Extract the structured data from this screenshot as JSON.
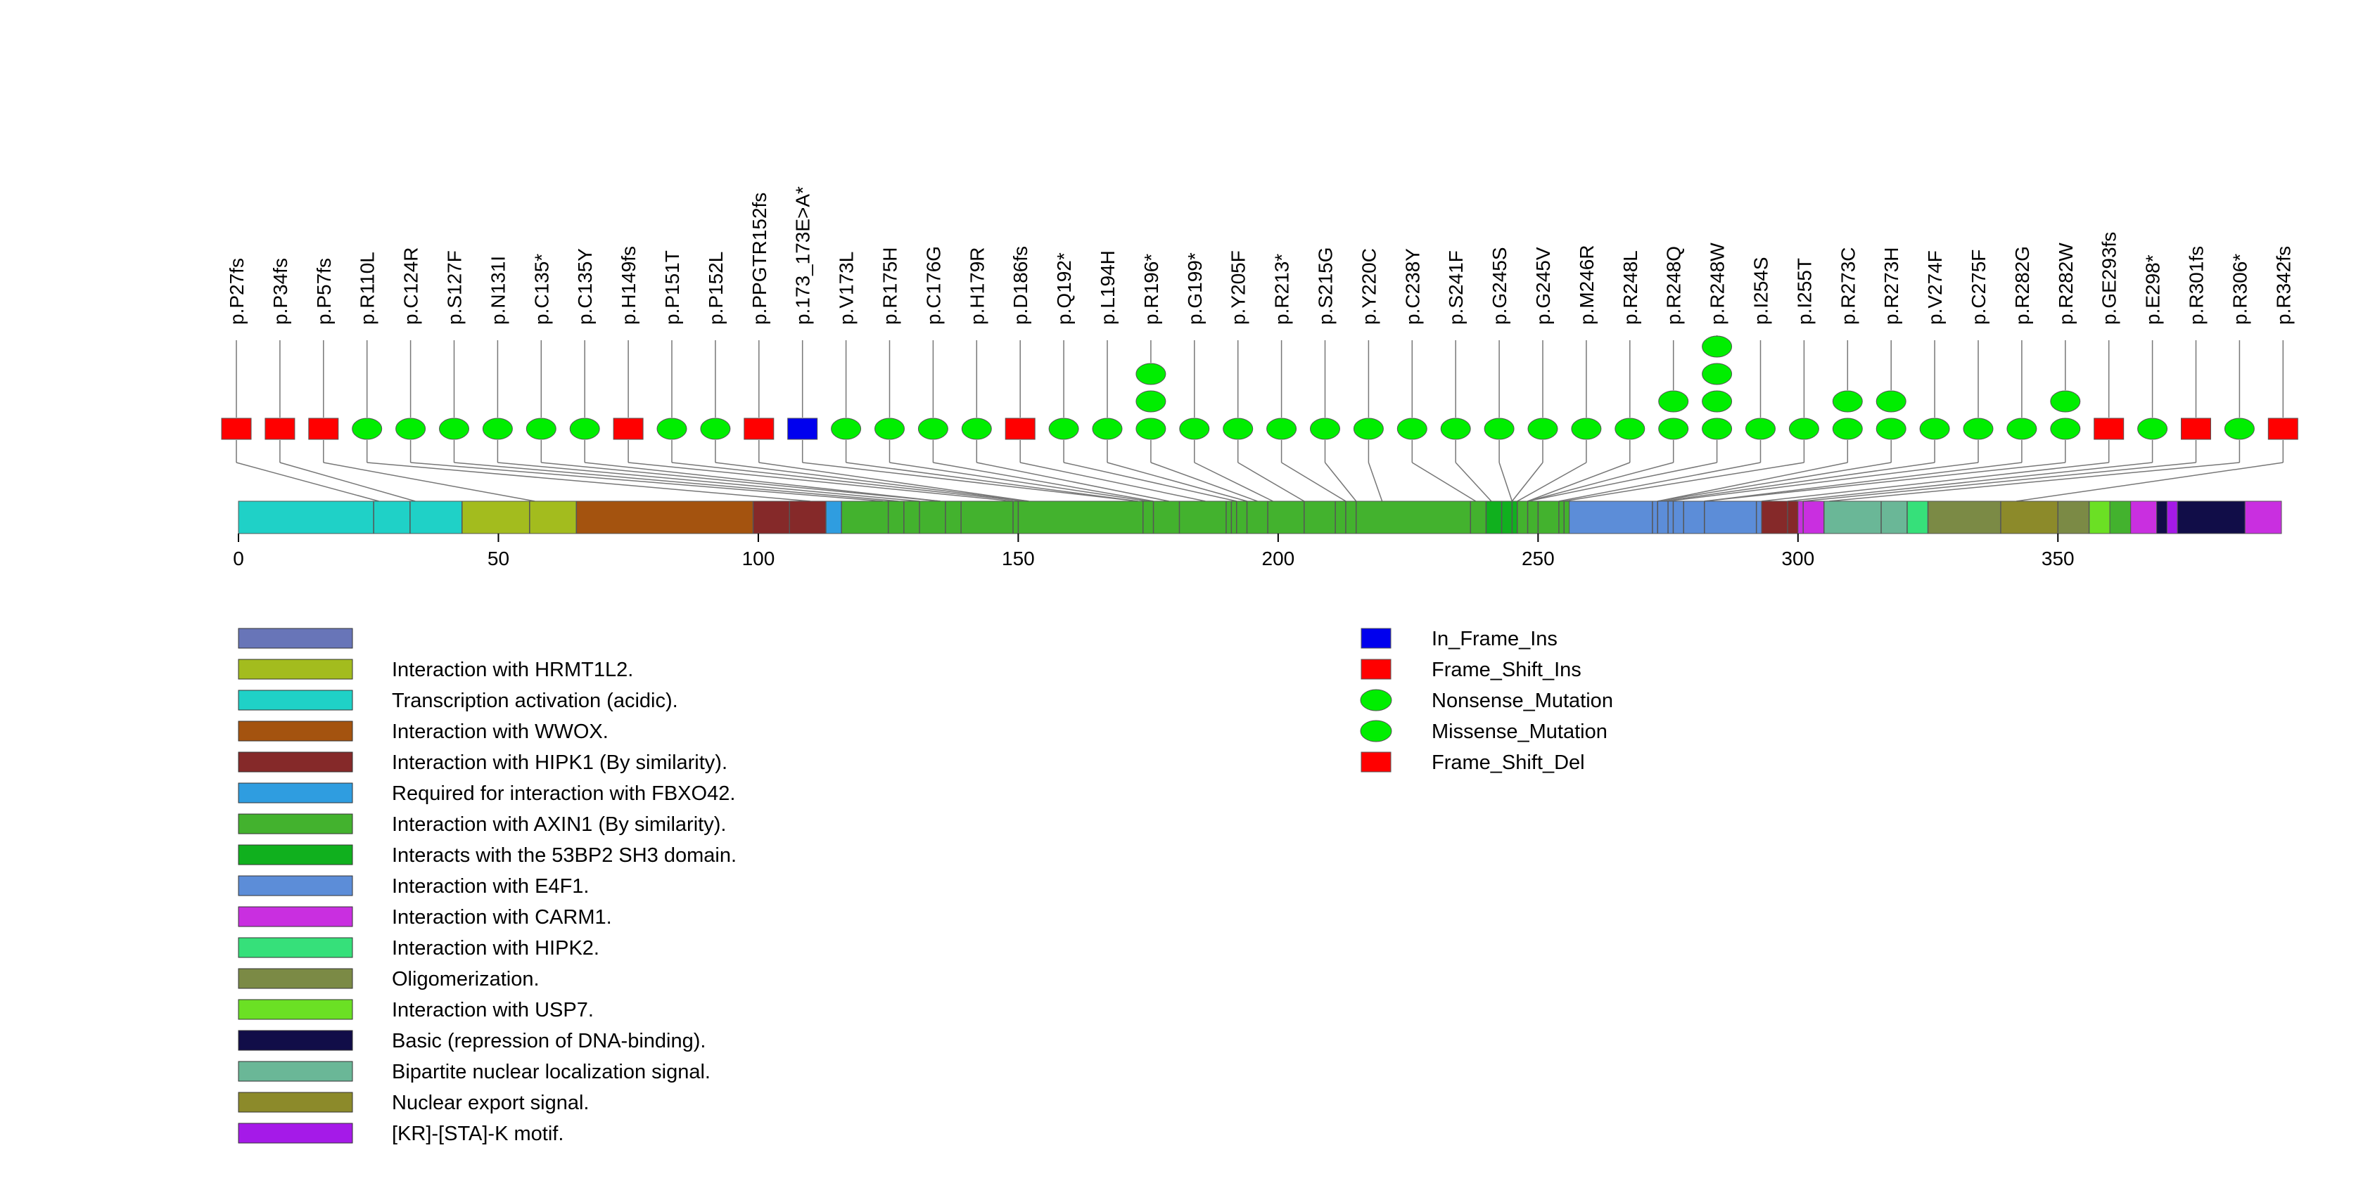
{
  "chart_data": {
    "type": "lollipop",
    "x_axis": {
      "min": 0,
      "max": 393,
      "ticks": [
        0,
        50,
        100,
        150,
        200,
        250,
        300,
        350
      ]
    },
    "mutation_types": {
      "In_Frame_Ins": {
        "color": "#0000ee",
        "shape": "rect"
      },
      "Frame_Shift_Ins": {
        "color": "#ff0000",
        "shape": "rect"
      },
      "Nonsense_Mutation": {
        "color": "#00ee00",
        "shape": "ellipse"
      },
      "Missense_Mutation": {
        "color": "#00ee00",
        "shape": "ellipse"
      },
      "Frame_Shift_Del": {
        "color": "#ff0000",
        "shape": "rect"
      }
    },
    "mutations": [
      {
        "label": "p.P27fs",
        "pos": 27,
        "type": "Frame_Shift_Del",
        "count": 1
      },
      {
        "label": "p.P34fs",
        "pos": 34,
        "type": "Frame_Shift_Del",
        "count": 1
      },
      {
        "label": "p.P57fs",
        "pos": 57,
        "type": "Frame_Shift_Del",
        "count": 1
      },
      {
        "label": "p.R110L",
        "pos": 110,
        "type": "Missense_Mutation",
        "count": 1
      },
      {
        "label": "p.C124R",
        "pos": 124,
        "type": "Missense_Mutation",
        "count": 1
      },
      {
        "label": "p.S127F",
        "pos": 127,
        "type": "Missense_Mutation",
        "count": 1
      },
      {
        "label": "p.N131I",
        "pos": 131,
        "type": "Missense_Mutation",
        "count": 1
      },
      {
        "label": "p.C135*",
        "pos": 135,
        "type": "Nonsense_Mutation",
        "count": 1
      },
      {
        "label": "p.C135Y",
        "pos": 135,
        "type": "Missense_Mutation",
        "count": 1
      },
      {
        "label": "p.H149fs",
        "pos": 149,
        "type": "Frame_Shift_Del",
        "count": 1
      },
      {
        "label": "p.P151T",
        "pos": 151,
        "type": "Missense_Mutation",
        "count": 1
      },
      {
        "label": "p.P152L",
        "pos": 152,
        "type": "Missense_Mutation",
        "count": 1
      },
      {
        "label": "p.PPGTR152fs",
        "pos": 152,
        "type": "Frame_Shift_Del",
        "count": 1
      },
      {
        "label": "p.173_173E>A*",
        "pos": 173,
        "type": "In_Frame_Ins",
        "count": 1
      },
      {
        "label": "p.V173L",
        "pos": 173,
        "type": "Missense_Mutation",
        "count": 1
      },
      {
        "label": "p.R175H",
        "pos": 175,
        "type": "Missense_Mutation",
        "count": 1
      },
      {
        "label": "p.C176G",
        "pos": 176,
        "type": "Missense_Mutation",
        "count": 1
      },
      {
        "label": "p.H179R",
        "pos": 179,
        "type": "Missense_Mutation",
        "count": 1
      },
      {
        "label": "p.D186fs",
        "pos": 186,
        "type": "Frame_Shift_Del",
        "count": 1
      },
      {
        "label": "p.Q192*",
        "pos": 192,
        "type": "Nonsense_Mutation",
        "count": 1
      },
      {
        "label": "p.L194H",
        "pos": 194,
        "type": "Missense_Mutation",
        "count": 1
      },
      {
        "label": "p.R196*",
        "pos": 196,
        "type": "Nonsense_Mutation",
        "count": 3
      },
      {
        "label": "p.G199*",
        "pos": 199,
        "type": "Nonsense_Mutation",
        "count": 1
      },
      {
        "label": "p.Y205F",
        "pos": 205,
        "type": "Missense_Mutation",
        "count": 1
      },
      {
        "label": "p.R213*",
        "pos": 213,
        "type": "Nonsense_Mutation",
        "count": 1
      },
      {
        "label": "p.S215G",
        "pos": 215,
        "type": "Missense_Mutation",
        "count": 1
      },
      {
        "label": "p.Y220C",
        "pos": 220,
        "type": "Missense_Mutation",
        "count": 1
      },
      {
        "label": "p.C238Y",
        "pos": 238,
        "type": "Missense_Mutation",
        "count": 1
      },
      {
        "label": "p.S241F",
        "pos": 241,
        "type": "Missense_Mutation",
        "count": 1
      },
      {
        "label": "p.G245S",
        "pos": 245,
        "type": "Missense_Mutation",
        "count": 1
      },
      {
        "label": "p.G245V",
        "pos": 245,
        "type": "Missense_Mutation",
        "count": 1
      },
      {
        "label": "p.M246R",
        "pos": 246,
        "type": "Missense_Mutation",
        "count": 1
      },
      {
        "label": "p.R248L",
        "pos": 248,
        "type": "Missense_Mutation",
        "count": 1
      },
      {
        "label": "p.R248Q",
        "pos": 248,
        "type": "Missense_Mutation",
        "count": 2
      },
      {
        "label": "p.R248W",
        "pos": 248,
        "type": "Missense_Mutation",
        "count": 4
      },
      {
        "label": "p.I254S",
        "pos": 254,
        "type": "Missense_Mutation",
        "count": 1
      },
      {
        "label": "p.I255T",
        "pos": 255,
        "type": "Missense_Mutation",
        "count": 1
      },
      {
        "label": "p.R273C",
        "pos": 273,
        "type": "Missense_Mutation",
        "count": 2
      },
      {
        "label": "p.R273H",
        "pos": 273,
        "type": "Missense_Mutation",
        "count": 2
      },
      {
        "label": "p.V274F",
        "pos": 274,
        "type": "Missense_Mutation",
        "count": 1
      },
      {
        "label": "p.C275F",
        "pos": 275,
        "type": "Missense_Mutation",
        "count": 1
      },
      {
        "label": "p.R282G",
        "pos": 282,
        "type": "Missense_Mutation",
        "count": 1
      },
      {
        "label": "p.R282W",
        "pos": 282,
        "type": "Missense_Mutation",
        "count": 2
      },
      {
        "label": "p.GE293fs",
        "pos": 293,
        "type": "Frame_Shift_Del",
        "count": 1
      },
      {
        "label": "p.E298*",
        "pos": 298,
        "type": "Nonsense_Mutation",
        "count": 1
      },
      {
        "label": "p.R301fs",
        "pos": 301,
        "type": "Frame_Shift_Del",
        "count": 1
      },
      {
        "label": "p.R306*",
        "pos": 306,
        "type": "Nonsense_Mutation",
        "count": 1
      },
      {
        "label": "p.R342fs",
        "pos": 342,
        "type": "Frame_Shift_Ins",
        "count": 1
      }
    ],
    "domains": [
      {
        "start": 0,
        "end": 393,
        "color": "#43b22e"
      },
      {
        "start": 0,
        "end": 26,
        "color": "#1fd1c7"
      },
      {
        "start": 26,
        "end": 43,
        "color": "#1fd1c7"
      },
      {
        "start": 43,
        "end": 56,
        "color": "#a3bc1e"
      },
      {
        "start": 56,
        "end": 65,
        "color": "#a3bc1e"
      },
      {
        "start": 65,
        "end": 99,
        "color": "#a4530f"
      },
      {
        "start": 99,
        "end": 113,
        "color": "#852929"
      },
      {
        "start": 113,
        "end": 116,
        "color": "#2f9de0"
      },
      {
        "start": 116,
        "end": 250,
        "color": "#43b22e"
      },
      {
        "start": 240,
        "end": 246,
        "color": "#10b01e"
      },
      {
        "start": 256,
        "end": 293,
        "color": "#5c8dd8"
      },
      {
        "start": 293,
        "end": 300,
        "color": "#852929"
      },
      {
        "start": 300,
        "end": 305,
        "color": "#c92fe0"
      },
      {
        "start": 305,
        "end": 321,
        "color": "#6ab797"
      },
      {
        "start": 321,
        "end": 325,
        "color": "#36e07a"
      },
      {
        "start": 325,
        "end": 339,
        "color": "#7b8a45"
      },
      {
        "start": 339,
        "end": 350,
        "color": "#8c8a2a"
      },
      {
        "start": 350,
        "end": 356,
        "color": "#7b8a45"
      },
      {
        "start": 356,
        "end": 360,
        "color": "#6be024"
      },
      {
        "start": 360,
        "end": 364,
        "color": "#43b22e"
      },
      {
        "start": 364,
        "end": 369,
        "color": "#c92fe0"
      },
      {
        "start": 369,
        "end": 371,
        "color": "#110d48"
      },
      {
        "start": 371,
        "end": 373,
        "color": "#a51ae8"
      },
      {
        "start": 373,
        "end": 386,
        "color": "#110d48"
      },
      {
        "start": 386,
        "end": 393,
        "color": "#c92fe0"
      }
    ],
    "domain_ticks": [
      26,
      33,
      43,
      56,
      65,
      99,
      106,
      113,
      116,
      125,
      128,
      131,
      136,
      139,
      149,
      150,
      174,
      176,
      181,
      190,
      191,
      192,
      194,
      198,
      205,
      211,
      213,
      215,
      237,
      240,
      243,
      245,
      246,
      248,
      250,
      254,
      255,
      272,
      273,
      275,
      276,
      278,
      282,
      292,
      298,
      301,
      305,
      316,
      321,
      325,
      339,
      350,
      356
    ],
    "legend_domains": [
      {
        "label": "",
        "color": "#6875b8"
      },
      {
        "label": "Interaction with HRMT1L2.",
        "color": "#a3bc1e"
      },
      {
        "label": "Transcription activation (acidic).",
        "color": "#1fd1c7"
      },
      {
        "label": "Interaction with WWOX.",
        "color": "#a4530f"
      },
      {
        "label": "Interaction with HIPK1 (By similarity).",
        "color": "#852929"
      },
      {
        "label": "Required for interaction with FBXO42.",
        "color": "#2f9de0"
      },
      {
        "label": "Interaction with AXIN1 (By similarity).",
        "color": "#43b22e"
      },
      {
        "label": "Interacts with the 53BP2 SH3 domain.",
        "color": "#10b01e"
      },
      {
        "label": "Interaction with E4F1.",
        "color": "#5c8dd8"
      },
      {
        "label": "Interaction with CARM1.",
        "color": "#c92fe0"
      },
      {
        "label": "Interaction with HIPK2.",
        "color": "#36e07a"
      },
      {
        "label": "Oligomerization.",
        "color": "#7b8a45"
      },
      {
        "label": "Interaction with USP7.",
        "color": "#6be024"
      },
      {
        "label": "Basic (repression of DNA-binding).",
        "color": "#110d48"
      },
      {
        "label": "Bipartite nuclear localization signal.",
        "color": "#6ab797"
      },
      {
        "label": "Nuclear export signal.",
        "color": "#8c8a2a"
      },
      {
        "label": "[KR]-[STA]-K motif.",
        "color": "#a51ae8"
      }
    ],
    "legend_types": [
      "In_Frame_Ins",
      "Frame_Shift_Ins",
      "Nonsense_Mutation",
      "Missense_Mutation",
      "Frame_Shift_Del"
    ]
  }
}
